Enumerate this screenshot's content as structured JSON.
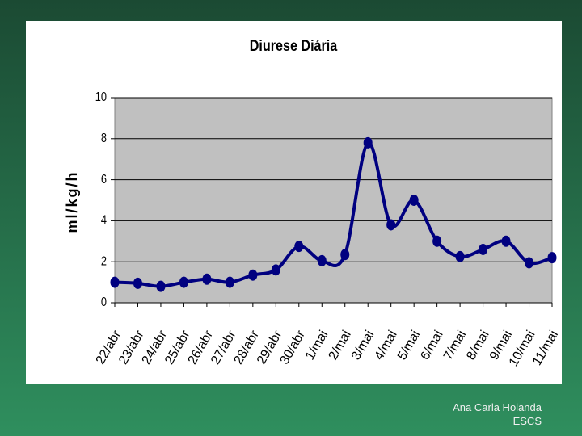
{
  "chart_data": {
    "type": "line",
    "title": "Diurese Diária",
    "y_label": "ml/kg/h",
    "categories": [
      "22/abr",
      "23/abr",
      "24/abr",
      "25/abr",
      "26/abr",
      "27/abr",
      "28/abr",
      "29/abr",
      "30/abr",
      "1/mai",
      "2/mai",
      "3/mai",
      "4/mai",
      "5/mai",
      "6/mai",
      "7/mai",
      "8/mai",
      "9/mai",
      "10/mai",
      "11/mai"
    ],
    "values": [
      1.0,
      0.95,
      0.8,
      1.0,
      1.15,
      1.0,
      1.35,
      1.6,
      2.75,
      2.05,
      2.35,
      7.8,
      3.8,
      5.0,
      3.0,
      2.25,
      2.6,
      3.0,
      1.95,
      2.2
    ],
    "color": "#000080",
    "ylim": [
      0,
      10
    ],
    "yticks": [
      0,
      2,
      4,
      6,
      8,
      10
    ],
    "grid": true
  },
  "footer": {
    "author": "Ana Carla Holanda",
    "org": "ESCS"
  }
}
